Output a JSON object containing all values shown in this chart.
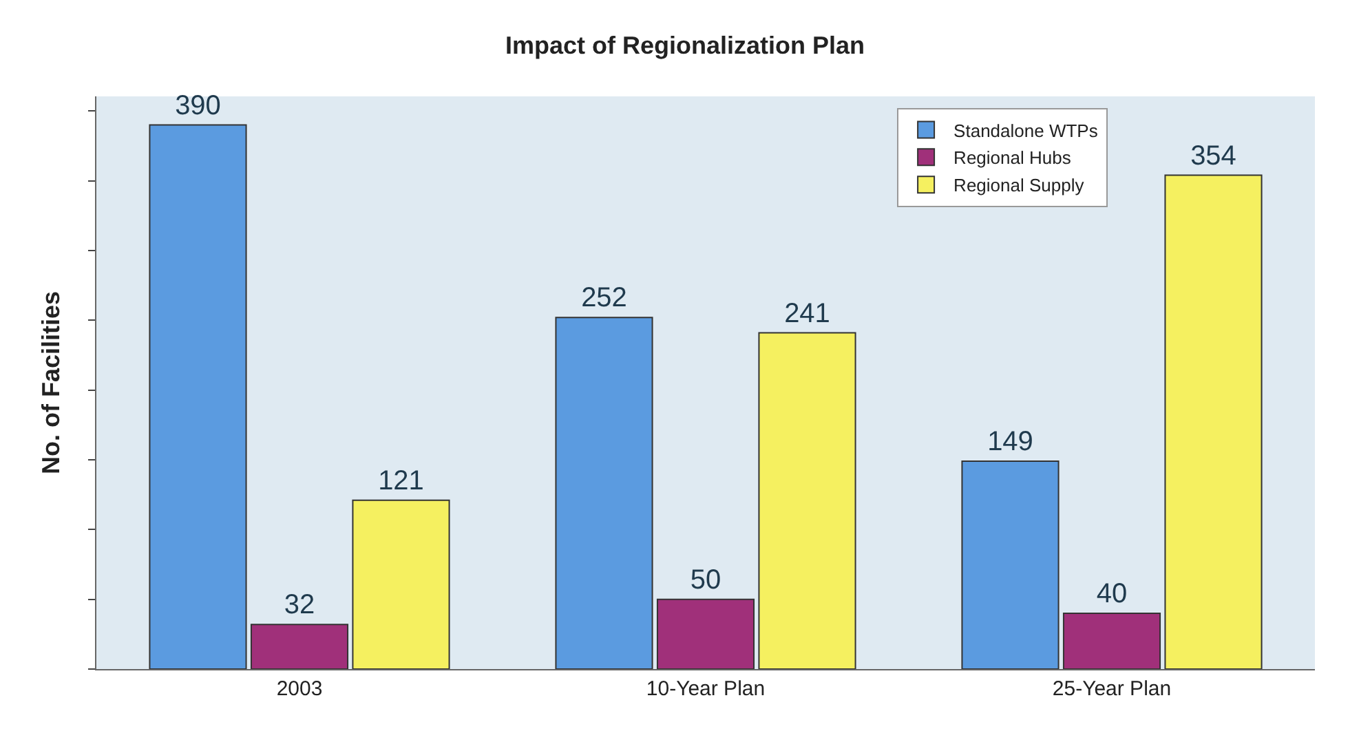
{
  "chart_data": {
    "type": "bar",
    "title": "Impact of Regionalization Plan",
    "ylabel": "No. of Facilities",
    "categories": [
      "2003",
      "10-Year Plan",
      "25-Year Plan"
    ],
    "series": [
      {
        "name": "Standalone WTPs",
        "color": "#5b9be0",
        "values": [
          390,
          252,
          149
        ]
      },
      {
        "name": "Regional Hubs",
        "color": "#a0307a",
        "values": [
          32,
          50,
          40
        ]
      },
      {
        "name": "Regional Supply",
        "color": "#f5f060",
        "values": [
          121,
          241,
          354
        ]
      }
    ],
    "data_labels": true,
    "legend": "top right",
    "tick_labels": "x"
  }
}
